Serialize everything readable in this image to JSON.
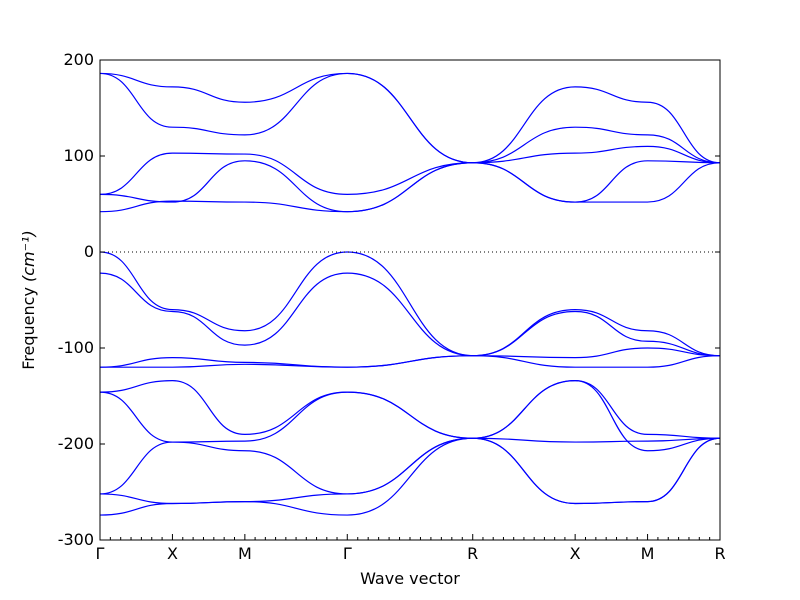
{
  "chart_data": {
    "type": "line",
    "title": "",
    "xlabel": "Wave vector",
    "ylabel_text": "Frequency ",
    "ylabel_unit": "(cm⁻¹)",
    "ylim": [
      -300,
      200
    ],
    "yticks": [
      -300,
      -200,
      -100,
      0,
      100,
      200
    ],
    "xticks": [
      {
        "pos": 0.0,
        "label": "Γ"
      },
      {
        "pos": 0.5,
        "label": "X"
      },
      {
        "pos": 1.0,
        "label": "M"
      },
      {
        "pos": 1.707,
        "label": "Γ"
      },
      {
        "pos": 2.573,
        "label": "R"
      },
      {
        "pos": 3.28,
        "label": "X"
      },
      {
        "pos": 3.78,
        "label": "M"
      },
      {
        "pos": 4.28,
        "label": "R"
      }
    ],
    "xlim": [
      0,
      4.28
    ],
    "zero_line": "dotted",
    "grid": false,
    "legend": "none",
    "line_color": "#0000ff",
    "series": [
      {
        "x": [
          0,
          0.5,
          1.0,
          1.707,
          2.573,
          3.28,
          3.78,
          4.28
        ],
        "y": [
          186,
          172,
          156,
          186,
          93,
          172,
          156,
          93
        ]
      },
      {
        "x": [
          0,
          0.5,
          1.0,
          1.707,
          2.573,
          3.28,
          3.78,
          4.28
        ],
        "y": [
          186,
          130,
          122,
          186,
          93,
          130,
          122,
          93
        ]
      },
      {
        "x": [
          0,
          0.5,
          1.0,
          1.707,
          2.573,
          3.28,
          3.78,
          4.28
        ],
        "y": [
          60,
          103,
          102,
          60,
          93,
          103,
          110,
          93
        ]
      },
      {
        "x": [
          0,
          0.5,
          1.0,
          1.707,
          2.573,
          3.28,
          3.78,
          4.28
        ],
        "y": [
          60,
          52,
          95,
          42,
          93,
          52,
          95,
          93
        ]
      },
      {
        "x": [
          0,
          0.5,
          1.0,
          1.707,
          2.573,
          3.28,
          3.78,
          4.28
        ],
        "y": [
          42,
          53,
          52,
          42,
          93,
          52,
          52,
          93
        ]
      },
      {
        "x": [
          0,
          0.5,
          1.0,
          1.707,
          2.573,
          3.28,
          3.78,
          4.28
        ],
        "y": [
          0,
          -60,
          -82,
          0,
          -108,
          -60,
          -82,
          -108
        ]
      },
      {
        "x": [
          0,
          0.5,
          1.0,
          1.707,
          2.573,
          3.28,
          3.78,
          4.28
        ],
        "y": [
          -22,
          -62,
          -97,
          -22,
          -108,
          -62,
          -93,
          -108
        ]
      },
      {
        "x": [
          0,
          0.5,
          1.0,
          1.707,
          2.573,
          3.28,
          3.78,
          4.28
        ],
        "y": [
          -120,
          -110,
          -115,
          -120,
          -108,
          -110,
          -100,
          -108
        ]
      },
      {
        "x": [
          0,
          0.5,
          1.0,
          1.707,
          2.573,
          3.28,
          3.78,
          4.28
        ],
        "y": [
          -120,
          -120,
          -117,
          -120,
          -108,
          -120,
          -120,
          -108
        ]
      },
      {
        "x": [
          0,
          0.5,
          1.0,
          1.707,
          2.573,
          3.28,
          3.78,
          4.28
        ],
        "y": [
          -146,
          -134,
          -190,
          -146,
          -194,
          -134,
          -190,
          -194
        ]
      },
      {
        "x": [
          0,
          0.5,
          1.0,
          1.707,
          2.573,
          3.28,
          3.78,
          4.28
        ],
        "y": [
          -146,
          -198,
          -197,
          -146,
          -194,
          -198,
          -197,
          -194
        ]
      },
      {
        "x": [
          0,
          0.5,
          1.0,
          1.707,
          2.573,
          3.28,
          3.78,
          4.28
        ],
        "y": [
          -252,
          -198,
          -207,
          -252,
          -194,
          -134,
          -207,
          -194
        ]
      },
      {
        "x": [
          0,
          0.5,
          1.0,
          1.707,
          2.573,
          3.28,
          3.78,
          4.28
        ],
        "y": [
          -252,
          -262,
          -260,
          -252,
          -194,
          -262,
          -260,
          -194
        ]
      },
      {
        "x": [
          0,
          0.5,
          1.0,
          1.707,
          2.573,
          3.28,
          3.78,
          4.28
        ],
        "y": [
          -274,
          -262,
          -260,
          -274,
          -194,
          -262,
          -260,
          -194
        ]
      }
    ]
  }
}
